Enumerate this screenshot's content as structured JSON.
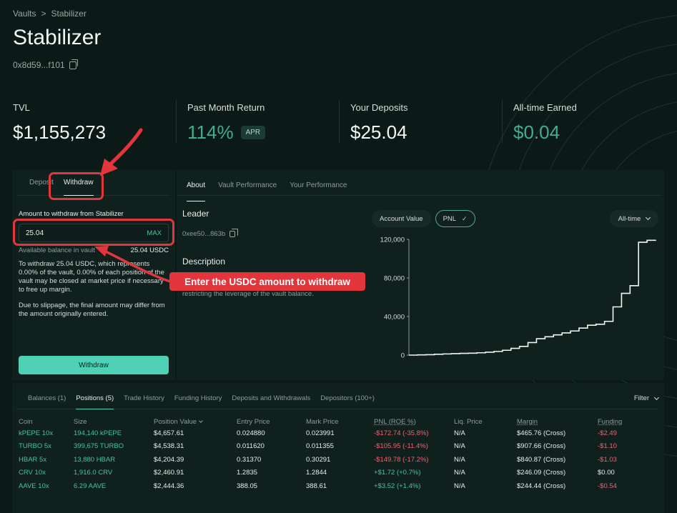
{
  "breadcrumb": {
    "parent": "Vaults",
    "separator": ">",
    "current": "Stabilizer"
  },
  "page": {
    "title": "Stabilizer",
    "address": "0x8d59...f101"
  },
  "stats": {
    "tvl": {
      "label": "TVL",
      "value": "$1,155,273"
    },
    "past_month_return": {
      "label": "Past Month Return",
      "value": "114%",
      "badge": "APR"
    },
    "your_deposits": {
      "label": "Your Deposits",
      "value": "$25.04"
    },
    "all_time_earned": {
      "label": "All-time Earned",
      "value": "$0.04"
    }
  },
  "left_panel": {
    "tabs": [
      "Deposit",
      "Withdraw"
    ],
    "active_tab": "Withdraw",
    "amount_label": "Amount to withdraw from Stabilizer",
    "amount_value": "25.04",
    "max_label": "MAX",
    "available_label": "Available balance in vault",
    "available_value": "25.04 USDC",
    "info_1": "To withdraw 25.04 USDC, which represents 0.00% of the vault, 0.00% of each position of the vault may be closed at market price if necessary to free up margin.",
    "info_2": "Due to slippage, the final amount may differ from the amount originally entered.",
    "withdraw_button": "Withdraw"
  },
  "right_panel": {
    "tabs": [
      "About",
      "Vault Performance",
      "Your Performance"
    ],
    "active_tab": "About",
    "leader_title": "Leader",
    "leader_address": "0xee50...863b",
    "description_title": "Description",
    "description_text": "restricting the leverage of the vault balance.",
    "toggle_account_value": "Account Value",
    "toggle_pnl": "PNL",
    "range_select": "All-time"
  },
  "chart_data": {
    "type": "line",
    "ylim": [
      0,
      120000
    ],
    "yticks": [
      "120,000",
      "80,000",
      "40,000",
      "0"
    ],
    "ytick_values": [
      120000,
      80000,
      40000,
      0
    ],
    "values": [
      0,
      200,
      400,
      900,
      1200,
      1500,
      1800,
      2000,
      2400,
      3000,
      3800,
      5000,
      7000,
      9000,
      13000,
      17000,
      19000,
      21000,
      23000,
      25000,
      28000,
      31000,
      32000,
      35000,
      50000,
      64000,
      72000,
      117000,
      119000,
      119500
    ]
  },
  "annotation": {
    "callout": "Enter the USDC amount to withdraw"
  },
  "bottom": {
    "tabs": [
      "Balances (1)",
      "Positions (5)",
      "Trade History",
      "Funding History",
      "Deposits and Withdrawals",
      "Depositors (100+)"
    ],
    "active_tab": "Positions (5)",
    "filter_label": "Filter",
    "columns": [
      "Coin",
      "Size",
      "Position Value",
      "Entry Price",
      "Mark Price",
      "PNL (ROE %)",
      "Liq. Price",
      "Margin",
      "Funding"
    ],
    "rows": [
      {
        "coin": "kPEPE",
        "lev": "10x",
        "size": "194,140 kPEPE",
        "position_value": "$4,657.61",
        "entry": "0.024880",
        "mark": "0.023991",
        "pnl": "-$172.74 (-35.8%)",
        "liq": "N/A",
        "margin": "$465.76 (Cross)",
        "funding": "-$2.49"
      },
      {
        "coin": "TURBO",
        "lev": "5x",
        "size": "399,675 TURBO",
        "position_value": "$4,538.31",
        "entry": "0.011620",
        "mark": "0.011355",
        "pnl": "-$105.95 (-11.4%)",
        "liq": "N/A",
        "margin": "$907.66 (Cross)",
        "funding": "-$1.10"
      },
      {
        "coin": "HBAR",
        "lev": "5x",
        "size": "13,880 HBAR",
        "position_value": "$4,204.39",
        "entry": "0.31370",
        "mark": "0.30291",
        "pnl": "-$149.78 (-17.2%)",
        "liq": "N/A",
        "margin": "$840.87 (Cross)",
        "funding": "-$1.03"
      },
      {
        "coin": "CRV",
        "lev": "10x",
        "size": "1,916.0 CRV",
        "position_value": "$2,460.91",
        "entry": "1.2835",
        "mark": "1.2844",
        "pnl": "+$1.72 (+0.7%)",
        "liq": "N/A",
        "margin": "$246.09 (Cross)",
        "funding": "$0.00"
      },
      {
        "coin": "AAVE",
        "lev": "10x",
        "size": "6.29 AAVE",
        "position_value": "$2,444.36",
        "entry": "388.05",
        "mark": "388.61",
        "pnl": "+$3.52 (+1.4%)",
        "liq": "N/A",
        "margin": "$244.44 (Cross)",
        "funding": "-$0.54"
      }
    ]
  }
}
